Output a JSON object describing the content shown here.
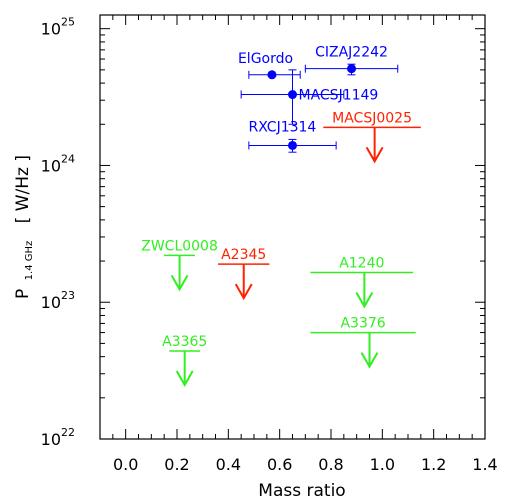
{
  "chart_data": {
    "type": "scatter",
    "xlabel": "Mass ratio",
    "ylabel_main": "P",
    "ylabel_sub": "1.4 GHz",
    "ylabel_unit": "[ W/Hz ]",
    "xlim": [
      -0.1,
      1.4
    ],
    "ylim_log10": [
      22,
      25.1
    ],
    "y_scale": "log",
    "grid": false,
    "x_ticks": [
      0.0,
      0.2,
      0.4,
      0.6,
      0.8,
      1.0,
      1.2,
      1.4
    ],
    "x_tick_labels": [
      "0.0",
      "0.2",
      "0.4",
      "0.6",
      "0.8",
      "1.0",
      "1.2",
      "1.4"
    ],
    "y_ticks": [
      {
        "base": "10",
        "exp": "22",
        "log10": 22
      },
      {
        "base": "10",
        "exp": "23",
        "log10": 23
      },
      {
        "base": "10",
        "exp": "24",
        "log10": 24
      },
      {
        "base": "10",
        "exp": "25",
        "log10": 25
      }
    ],
    "colors": {
      "detection": "#0000ff",
      "upper_limit_red": "#ff2200",
      "upper_limit_green": "#33ee22"
    },
    "detections": [
      {
        "name": "ElGordo",
        "x": 0.57,
        "x_err": [
          0.48,
          0.68
        ],
        "y": 4.6e+24,
        "y_err": [
          4.6e+24,
          4.6e+24
        ]
      },
      {
        "name": "CIZAJ2242",
        "x": 0.88,
        "x_err": [
          0.7,
          1.06
        ],
        "y": 5.1e+24,
        "y_err": [
          4.6e+24,
          5.5e+24
        ]
      },
      {
        "name": "MACSJ1149",
        "x": 0.65,
        "x_err": [
          0.45,
          0.85
        ],
        "y": 3.3e+24,
        "y_err": [
          2e+24,
          5e+24
        ]
      },
      {
        "name": "RXCJ1314",
        "x": 0.65,
        "x_err": [
          0.48,
          0.82
        ],
        "y": 1.4e+24,
        "y_err": [
          1.25e+24,
          1.55e+24
        ]
      }
    ],
    "upper_limits": [
      {
        "name": "MACSJ0025",
        "x": 0.97,
        "x_range": [
          0.77,
          1.15
        ],
        "y": 1.9e+24,
        "color": "red"
      },
      {
        "name": "A2345",
        "x": 0.46,
        "x_range": [
          0.36,
          0.56
        ],
        "y": 1.9e+23,
        "color": "red"
      },
      {
        "name": "ZWCL0008",
        "x": 0.21,
        "x_range": [
          0.15,
          0.27
        ],
        "y": 2.2e+23,
        "color": "green"
      },
      {
        "name": "A1240",
        "x": 0.93,
        "x_range": [
          0.72,
          1.12
        ],
        "y": 1.65e+23,
        "color": "green"
      },
      {
        "name": "A3365",
        "x": 0.23,
        "x_range": [
          0.17,
          0.29
        ],
        "y": 4.4e+22,
        "color": "green"
      },
      {
        "name": "A3376",
        "x": 0.95,
        "x_range": [
          0.72,
          1.13
        ],
        "y": 6e+22,
        "color": "green"
      }
    ]
  }
}
